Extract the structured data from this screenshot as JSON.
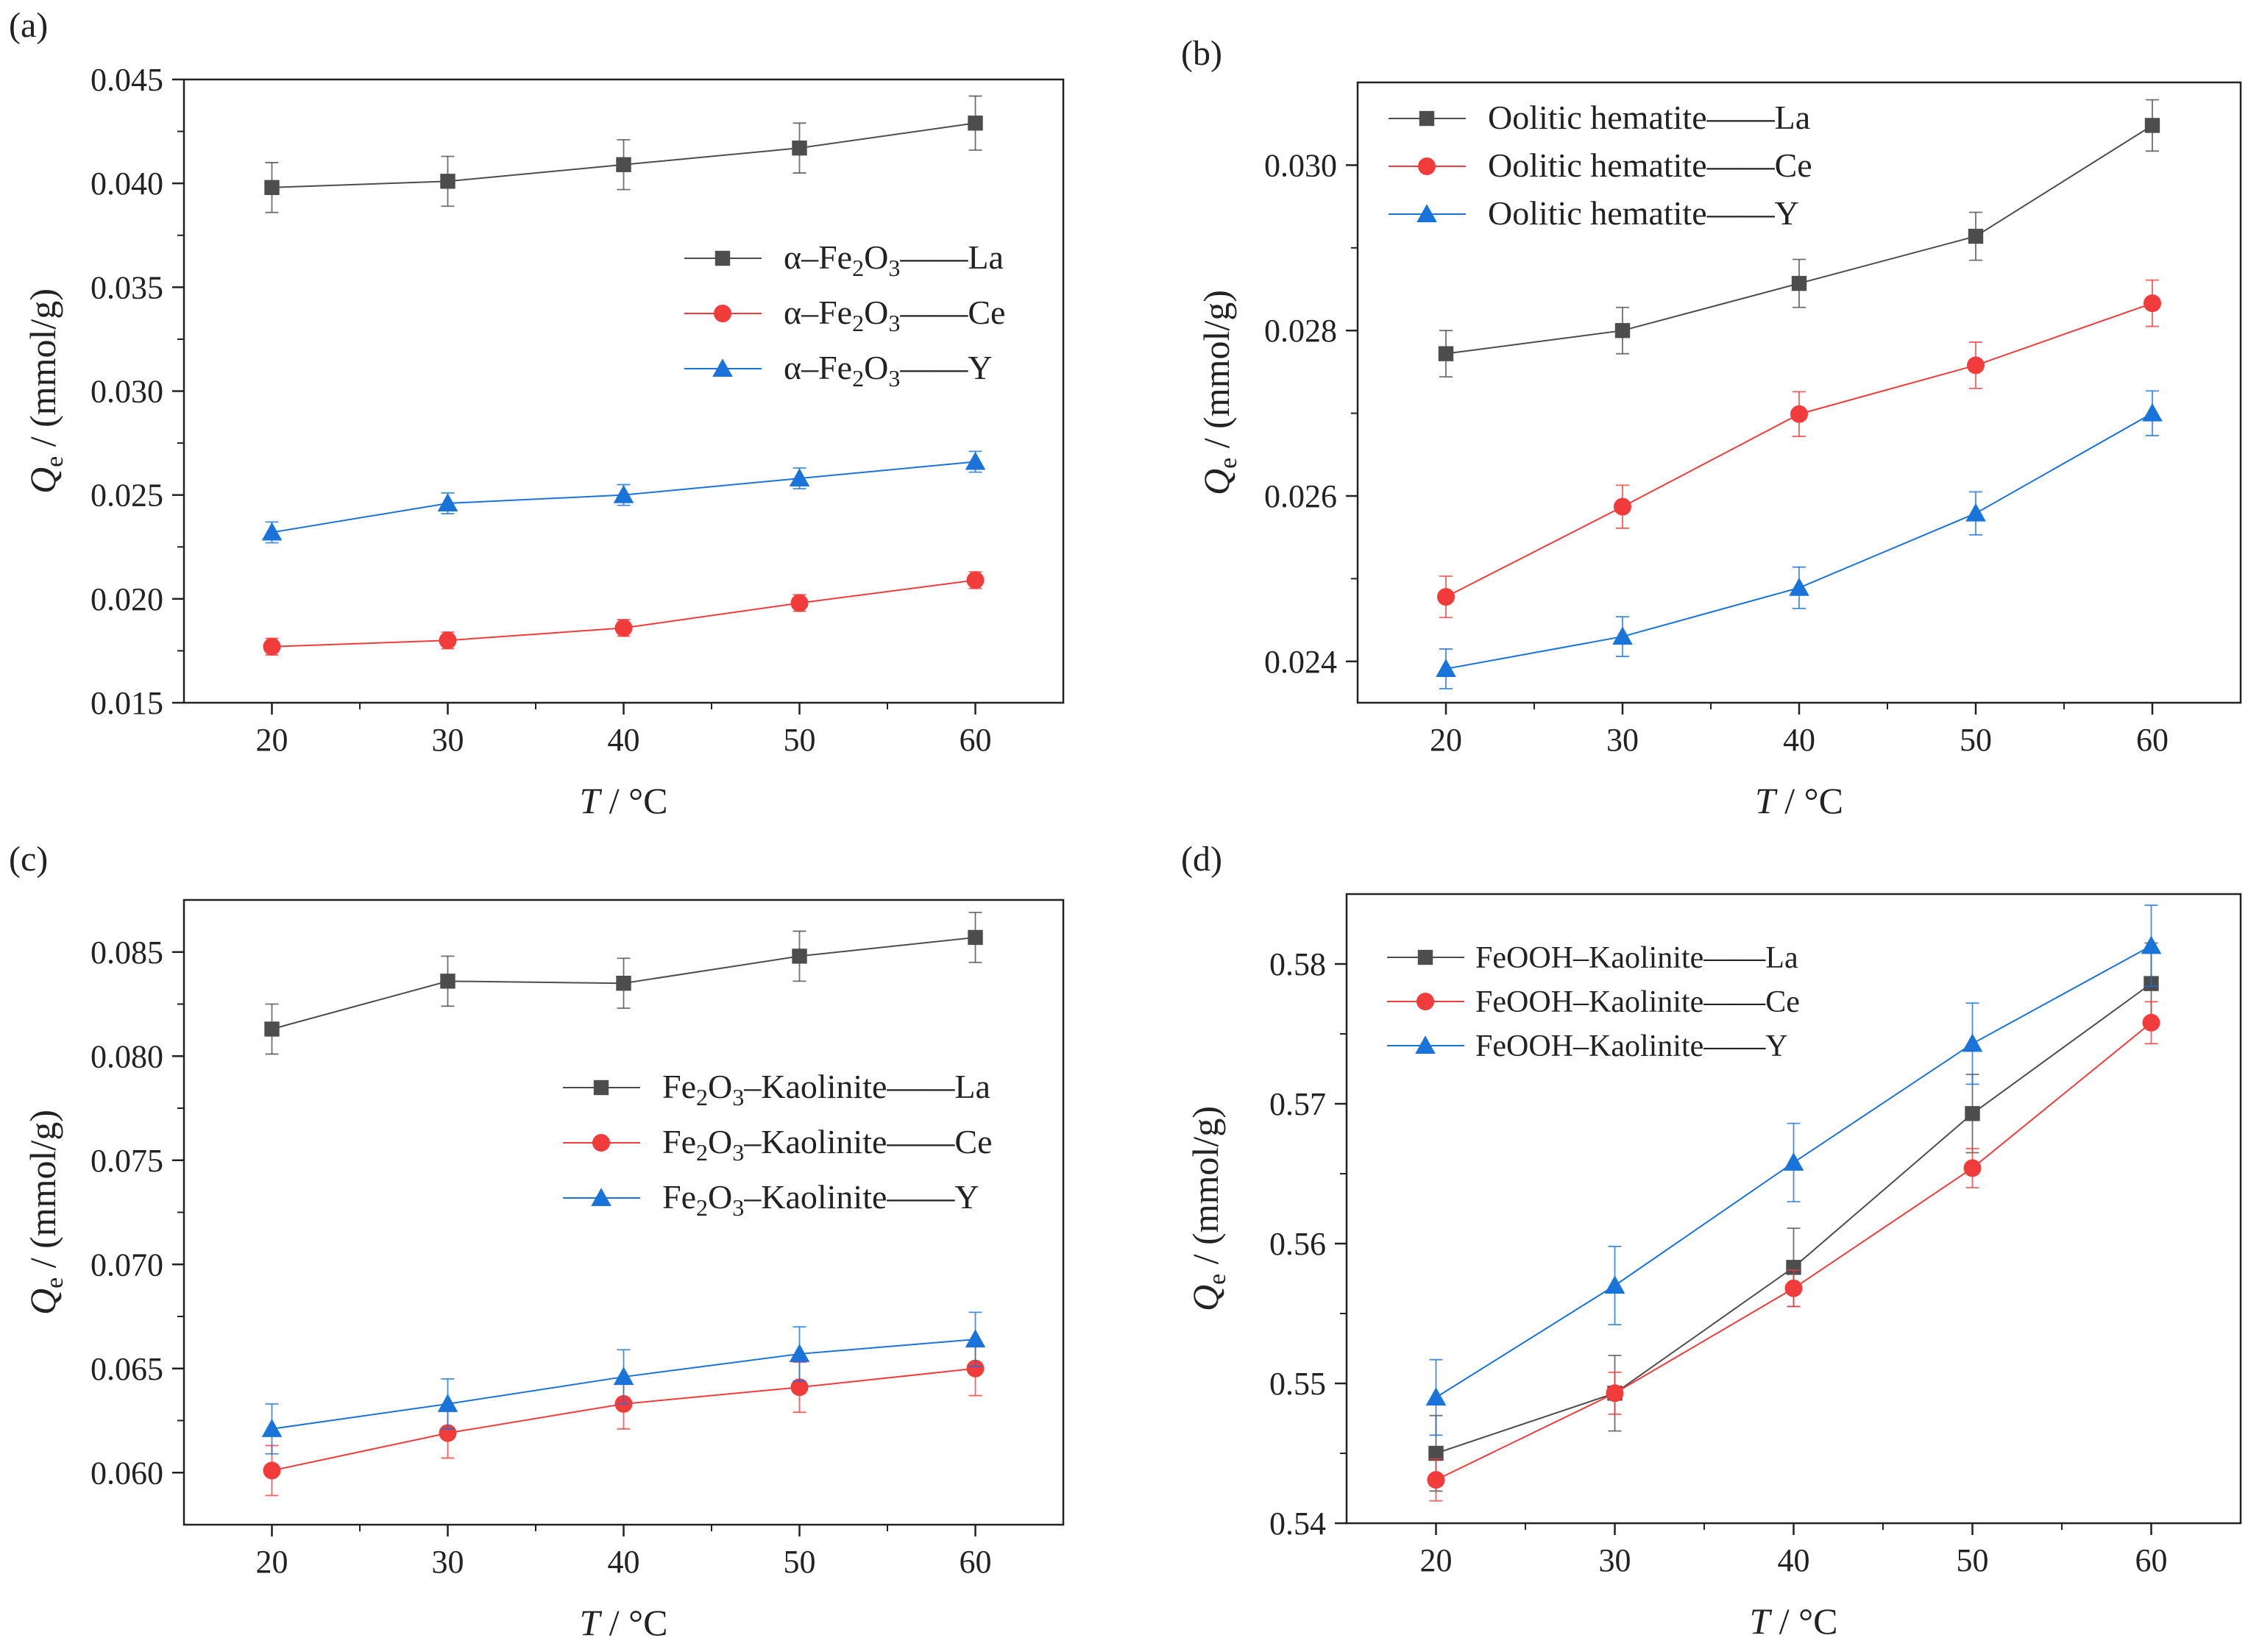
{
  "colors": {
    "La": "#4d4d4d",
    "Ce": "#f23b3b",
    "Y": "#1a73d9",
    "axis": "#222222"
  },
  "chart_data": [
    {
      "panel_label": "(a)",
      "type": "line",
      "xlabel": "T / °C",
      "ylabel": "Q_e / (mmol/g)",
      "x": [
        20,
        30,
        40,
        50,
        60
      ],
      "xlim": [
        15,
        65
      ],
      "ylim": [
        0.015,
        0.045
      ],
      "xticks": [
        20,
        30,
        40,
        50,
        60
      ],
      "yticks": [
        0.015,
        0.02,
        0.025,
        0.03,
        0.035,
        0.04,
        0.045
      ],
      "ytick_labels": [
        "0.015",
        "0.020",
        "0.025",
        "0.030",
        "0.035",
        "0.040",
        "0.045"
      ],
      "legend_position": "right",
      "legend_prefix": "α–Fe",
      "series": [
        {
          "name": "α–Fe2O3——La",
          "legend_suffix": "——La",
          "key": "La",
          "values": [
            0.0398,
            0.0401,
            0.0409,
            0.0417,
            0.0429
          ],
          "errors": [
            0.0012,
            0.0012,
            0.0012,
            0.0012,
            0.0013
          ]
        },
        {
          "name": "α–Fe2O3——Ce",
          "legend_suffix": "——Ce",
          "key": "Ce",
          "values": [
            0.0177,
            0.018,
            0.0186,
            0.0198,
            0.0209
          ],
          "errors": [
            0.0004,
            0.0004,
            0.0004,
            0.0004,
            0.0004
          ]
        },
        {
          "name": "α–Fe2O3——Y",
          "legend_suffix": "——Y",
          "key": "Y",
          "values": [
            0.0232,
            0.0246,
            0.025,
            0.0258,
            0.0266
          ],
          "errors": [
            0.0005,
            0.0005,
            0.0005,
            0.0005,
            0.0005
          ]
        }
      ]
    },
    {
      "panel_label": "(b)",
      "type": "line",
      "xlabel": "T / °C",
      "ylabel": "Q_e / (mmol/g)",
      "x": [
        20,
        30,
        40,
        50,
        60
      ],
      "xlim": [
        15,
        65
      ],
      "ylim": [
        0.0235,
        0.031
      ],
      "xticks": [
        20,
        30,
        40,
        50,
        60
      ],
      "yticks": [
        0.024,
        0.026,
        0.028,
        0.03
      ],
      "ytick_labels": [
        "0.024",
        "0.026",
        "0.028",
        "0.030"
      ],
      "legend_position": "top-left",
      "legend_prefix": "Oolitic hematite",
      "series": [
        {
          "name": "Oolitic hematite——La",
          "legend_suffix": "——La",
          "key": "La",
          "values": [
            0.02772,
            0.028,
            0.02857,
            0.02914,
            0.03048
          ],
          "errors": [
            0.00028,
            0.00028,
            0.00029,
            0.00029,
            0.00031
          ]
        },
        {
          "name": "Oolitic hematite——Ce",
          "legend_suffix": "——Ce",
          "key": "Ce",
          "values": [
            0.02478,
            0.02587,
            0.02699,
            0.02758,
            0.02833
          ],
          "errors": [
            0.00025,
            0.00026,
            0.00027,
            0.00028,
            0.00028
          ]
        },
        {
          "name": "Oolitic hematite——Y",
          "legend_suffix": "——Y",
          "key": "Y",
          "values": [
            0.02391,
            0.0243,
            0.02489,
            0.02579,
            0.027
          ],
          "errors": [
            0.00024,
            0.00024,
            0.00025,
            0.00026,
            0.00027
          ]
        }
      ]
    },
    {
      "panel_label": "(c)",
      "type": "line",
      "xlabel": "T / °C",
      "ylabel": "Q_e / (mmol/g)",
      "x": [
        20,
        30,
        40,
        50,
        60
      ],
      "xlim": [
        15,
        65
      ],
      "ylim": [
        0.0575,
        0.0875
      ],
      "xticks": [
        20,
        30,
        40,
        50,
        60
      ],
      "yticks": [
        0.06,
        0.065,
        0.07,
        0.075,
        0.08,
        0.085
      ],
      "ytick_labels": [
        "0.060",
        "0.065",
        "0.070",
        "0.075",
        "0.080",
        "0.085"
      ],
      "legend_position": "right",
      "legend_prefix": "Fe",
      "series": [
        {
          "name": "Fe2O3–Kaolinite——La",
          "legend_suffix": "——La",
          "key": "La",
          "values": [
            0.0813,
            0.0836,
            0.0835,
            0.0848,
            0.0857
          ],
          "errors": [
            0.0012,
            0.0012,
            0.0012,
            0.0012,
            0.0012
          ]
        },
        {
          "name": "Fe2O3–Kaolinite——Ce",
          "legend_suffix": "——Ce",
          "key": "Ce",
          "values": [
            0.0601,
            0.0619,
            0.0633,
            0.0641,
            0.065
          ],
          "errors": [
            0.0012,
            0.0012,
            0.0012,
            0.0012,
            0.0013
          ]
        },
        {
          "name": "Fe2O3–Kaolinite——Y",
          "legend_suffix": "——Y",
          "key": "Y",
          "values": [
            0.0621,
            0.0633,
            0.0646,
            0.0657,
            0.0664
          ],
          "errors": [
            0.0012,
            0.0012,
            0.0013,
            0.0013,
            0.0013
          ]
        }
      ]
    },
    {
      "panel_label": "(d)",
      "type": "line",
      "xlabel": "T / °C",
      "ylabel": "Q_e / (mmol/g)",
      "x": [
        20,
        30,
        40,
        50,
        60
      ],
      "xlim": [
        15,
        65
      ],
      "ylim": [
        0.54,
        0.585
      ],
      "xticks": [
        20,
        30,
        40,
        50,
        60
      ],
      "yticks": [
        0.54,
        0.55,
        0.56,
        0.57,
        0.58
      ],
      "ytick_labels": [
        "0.54",
        "0.55",
        "0.56",
        "0.57",
        "0.58"
      ],
      "legend_position": "top-left",
      "legend_prefix": "FeOOH–Kaolinite",
      "series": [
        {
          "name": "FeOOH–Kaolinite——La",
          "legend_suffix": "——La",
          "key": "La",
          "values": [
            0.545,
            0.5493,
            0.5583,
            0.5693,
            0.5786
          ],
          "errors": [
            0.0027,
            0.0027,
            0.0028,
            0.0028,
            0.0029
          ]
        },
        {
          "name": "FeOOH–Kaolinite——Ce",
          "legend_suffix": "——Ce",
          "key": "Ce",
          "values": [
            0.5431,
            0.5493,
            0.5568,
            0.5654,
            0.5758
          ],
          "errors": [
            0.0015,
            0.0015,
            0.0013,
            0.0014,
            0.0015
          ]
        },
        {
          "name": "FeOOH–Kaolinite——Y",
          "legend_suffix": "——Y",
          "key": "Y",
          "values": [
            0.549,
            0.557,
            0.5658,
            0.5743,
            0.5813
          ],
          "errors": [
            0.0027,
            0.0028,
            0.0028,
            0.0029,
            0.0029
          ]
        }
      ]
    }
  ]
}
